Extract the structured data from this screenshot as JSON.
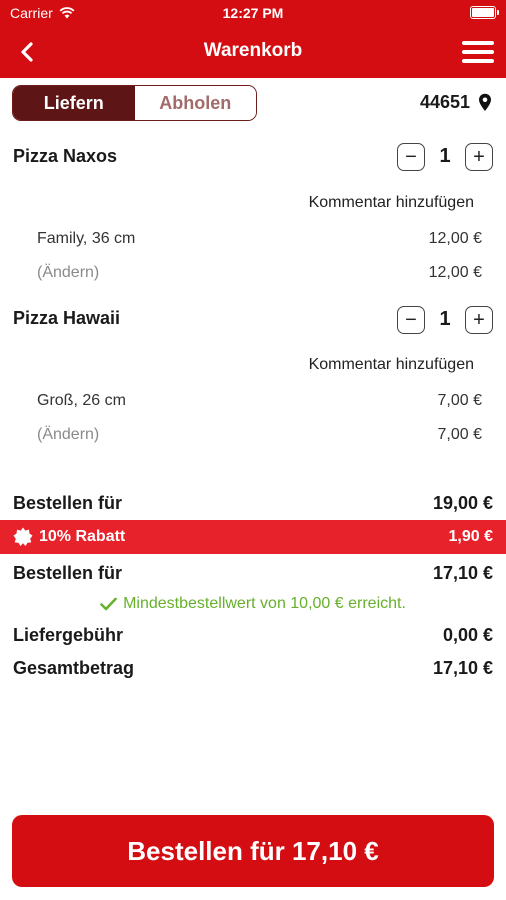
{
  "status_bar": {
    "carrier": "Carrier",
    "time": "12:27 PM"
  },
  "nav": {
    "title": "Warenkorb"
  },
  "mode": {
    "deliver": "Liefern",
    "pickup": "Abholen",
    "selected": "Liefern"
  },
  "zip": "44651",
  "items": [
    {
      "name": "Pizza Naxos",
      "qty": "1",
      "comment": "Kommentar hinzufügen",
      "size": "Family, 36 cm",
      "size_price": "12,00 €",
      "change": "(Ändern)",
      "change_price": "12,00 €"
    },
    {
      "name": "Pizza Hawaii",
      "qty": "1",
      "comment": "Kommentar hinzufügen",
      "size": "Groß, 26 cm",
      "size_price": "7,00 €",
      "change": "(Ändern)",
      "change_price": "7,00 €"
    }
  ],
  "summary": {
    "subtotal_label": "Bestellen für",
    "subtotal_value": "19,00 €",
    "discount_label": "10% Rabatt",
    "discount_value": "1,90 €",
    "after_discount_label": "Bestellen für",
    "after_discount_value": "17,10 €",
    "minimum_notice": "Mindestbestellwert von 10,00 € erreicht.",
    "delivery_fee_label": "Liefergebühr",
    "delivery_fee_value": "0,00 €",
    "total_label": "Gesamtbetrag",
    "total_value": "17,10 €"
  },
  "cta": {
    "label": "Bestellen für 17,10 €"
  },
  "colors": {
    "brand_red": "#d40d12",
    "discount_red": "#e8222b",
    "segment_dark": "#5e1515",
    "success_green": "#67b02c"
  }
}
